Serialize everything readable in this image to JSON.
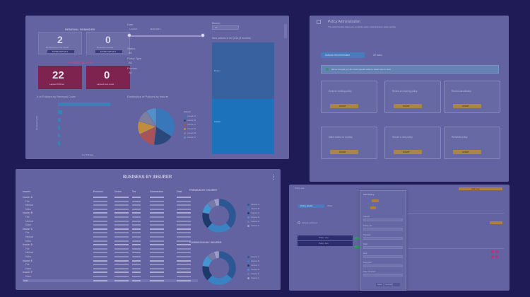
{
  "panel1": {
    "renewal_header": "RENEWAL REMINDER",
    "kpi_top": [
      {
        "value": "2",
        "caption": "Renewal due this month",
        "button": "MORE DETAILS"
      },
      {
        "value": "0",
        "caption": "Renewal overdue",
        "button": "MORE DETAILS"
      }
    ],
    "lapsed_header": "LAPSED POLICIES",
    "kpi_red": [
      {
        "value": "22",
        "caption": "Lapsed Policies"
      },
      {
        "value": "0",
        "caption": "Lapsed next week"
      }
    ],
    "bar_title": "# of Policies by Renewal Cycle",
    "pie_title": "Distribution of Policies by Insurer",
    "date_label": "Date",
    "date_from": "1/1/2021",
    "date_to": "12/31/2021",
    "filter_label": "Broker",
    "filter_value": "All",
    "list_items": [
      "Status",
      "All",
      "Policy Type",
      "All",
      "Product",
      "All"
    ],
    "treemap_title": "New policies in the year (3 months)",
    "treemap_labels": [
      "Broker",
      "Insurer"
    ],
    "legend_title": "Insurer",
    "legend_items": [
      "Insurer A",
      "Insurer B",
      "Insurer C",
      "Insurer D",
      "Insurer E",
      "Insurer F"
    ],
    "bar_x_label": "# of Policies",
    "bar_y_label": "Renewal Cycle",
    "pie_colors": [
      "#3b83c4",
      "#2d4e80",
      "#b85a5a",
      "#d49a3a",
      "#8a8ca8",
      "#5a9fd4"
    ],
    "bar_values": [
      0.95,
      0.08,
      0.05,
      0.03,
      0.02,
      0.02
    ]
  },
  "panel2": {
    "title": "Policy Administration",
    "subtitle": "The wizard below helps you complete policy administration tasks quickly.",
    "tabs": [
      "Actions recommended",
      "All tasks"
    ],
    "info": "We've brought you the most popular actions; select one to start.",
    "cards": [
      {
        "text": "Endorse existing policy",
        "button": "START"
      },
      {
        "text": "Renew an expiring policy",
        "button": "START"
      },
      {
        "text": "Record cancellation",
        "button": "START"
      },
      {
        "text": "Make claims on a policy",
        "button": "START"
      },
      {
        "text": "Record a new policy",
        "button": "START"
      },
      {
        "text": "Reinstate policy",
        "button": "START"
      }
    ]
  },
  "panel3": {
    "title": "BUSINESS BY INSURER",
    "columns": [
      "Insurer",
      "Premium",
      "Comm",
      "Tax",
      "Commission",
      "Total"
    ],
    "rows": [
      {
        "name": "Insurer A",
        "group": true
      },
      {
        "name": "Fire",
        "group": false
      },
      {
        "name": "Medical",
        "group": false
      },
      {
        "name": "Motor",
        "group": false
      },
      {
        "name": "Insurer B",
        "group": true
      },
      {
        "name": "Fire",
        "group": false
      },
      {
        "name": "Medical",
        "group": false
      },
      {
        "name": "Motor",
        "group": false
      },
      {
        "name": "Insurer C",
        "group": true
      },
      {
        "name": "Fire",
        "group": false
      },
      {
        "name": "Medical",
        "group": false
      },
      {
        "name": "Motor",
        "group": false
      },
      {
        "name": "Insurer D",
        "group": true
      },
      {
        "name": "Fire",
        "group": false
      },
      {
        "name": "Medical",
        "group": false
      },
      {
        "name": "Motor",
        "group": false
      },
      {
        "name": "Insurer E",
        "group": true
      },
      {
        "name": "Fire",
        "group": false
      },
      {
        "name": "Motor",
        "group": false
      },
      {
        "name": "Insurer F",
        "group": true
      },
      {
        "name": "Motor",
        "group": false
      },
      {
        "name": "Total",
        "group": true
      }
    ],
    "premium_title": "PREMIUM BY INSURER",
    "commission_title": "COMMISSION BY INSURER",
    "legend": [
      "Insurer A",
      "Insurer B",
      "Insurer C",
      "Insurer D",
      "Insurer E",
      "Insurer F"
    ],
    "donut_colors": [
      "#2f5f99",
      "#3d8fd0",
      "#1d3f6e",
      "#4aa3e0",
      "#7f86b2",
      "#a9acd4"
    ]
  },
  "panel4": {
    "title": "Policy List",
    "modal_title": "Add Policy",
    "tabs": [
      "Policy details",
      "Other"
    ],
    "option": "Include archived",
    "fields": [
      "Insurer",
      "Policy no.",
      "Product",
      "Start",
      "End",
      "Premium",
      "Sum insured"
    ],
    "buttons": [
      "Save",
      "Cancel"
    ],
    "top_chip": "Add new",
    "dark_items": [
      "Policy one",
      "Policy two"
    ]
  },
  "colors": {
    "background": "#1e1b57",
    "panel": "#6a6da9",
    "accent_blue": "#3b8fc2",
    "accent_gold": "#b79344",
    "kpi_red": "#8a2450"
  }
}
